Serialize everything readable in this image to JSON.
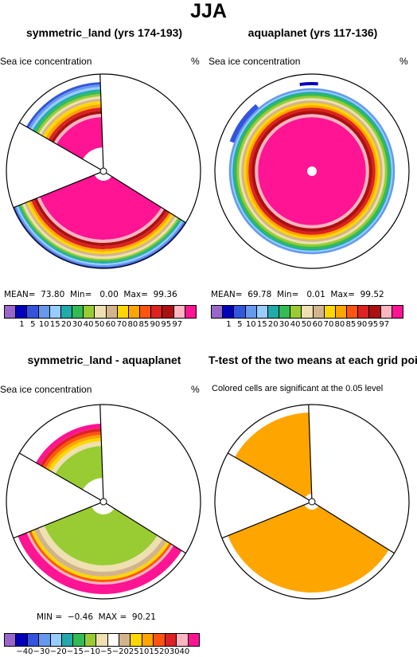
{
  "main_title": "JJA",
  "panels": {
    "p1": {
      "title": "symmetric_land (yrs 174-193)",
      "label": "Sea ice concentration",
      "unit": "%",
      "stats": "MEAN=  73.80  Min=   0.00  Max=  99.36"
    },
    "p2": {
      "title": "aquaplanet (yrs 117-136)",
      "label": "Sea ice concentration",
      "unit": "%",
      "stats": "MEAN=  69.78  Min=   0.01  Max=  99.52"
    },
    "p3": {
      "title": "symmetric_land - aquaplanet",
      "label": "Sea ice concentration",
      "unit": "%",
      "stats": "MIN =  −0.46  MAX =  90.21"
    },
    "p4": {
      "title": "T-test of the two means at each grid point",
      "label": "Colored cells are significant at the 0.05 level"
    }
  },
  "colorbar_top": {
    "colors": [
      "#9966CC",
      "#0000BB",
      "#3355DD",
      "#6699EE",
      "#99CCFF",
      "#22AAAA",
      "#33BB55",
      "#99CC33",
      "#EEE0B0",
      "#D2B48C",
      "#FFD700",
      "#FFA500",
      "#FF5511",
      "#DD2222",
      "#AA1111",
      "#FFB6C1",
      "#FF1493"
    ],
    "ticks": [
      "1",
      "5",
      "10",
      "15",
      "20",
      "30",
      "40",
      "50",
      "60",
      "70",
      "80",
      "85",
      "90",
      "95",
      "97"
    ]
  },
  "colorbar_bottom": {
    "colors": [
      "#9966CC",
      "#0000BB",
      "#3355DD",
      "#6699EE",
      "#99CCFF",
      "#22AAAA",
      "#33BB55",
      "#99CC33",
      "#EEE0B0",
      "#FFFFFF",
      "#D2B48C",
      "#FFD700",
      "#FFA500",
      "#FF5511",
      "#DD2222",
      "#FFB6C1",
      "#FF1493"
    ],
    "ticks": [
      "−40",
      "−30",
      "−20",
      "−15",
      "−10",
      "−5",
      "−2",
      "0",
      "2",
      "5",
      "10",
      "15",
      "20",
      "30",
      "40"
    ]
  },
  "chart_data": [
    {
      "type": "heatmap",
      "title": "symmetric_land (yrs 174-193)",
      "variable": "Sea ice concentration",
      "unit": "%",
      "mean": 73.8,
      "min": 0.0,
      "max": 99.36,
      "levels": [
        1,
        5,
        10,
        15,
        20,
        30,
        40,
        50,
        60,
        70,
        80,
        85,
        90,
        95,
        97
      ]
    },
    {
      "type": "heatmap",
      "title": "aquaplanet (yrs 117-136)",
      "variable": "Sea ice concentration",
      "unit": "%",
      "mean": 69.78,
      "min": 0.01,
      "max": 99.52,
      "levels": [
        1,
        5,
        10,
        15,
        20,
        30,
        40,
        50,
        60,
        70,
        80,
        85,
        90,
        95,
        97
      ]
    },
    {
      "type": "heatmap",
      "title": "symmetric_land - aquaplanet",
      "variable": "Sea ice concentration",
      "unit": "%",
      "min": -0.46,
      "max": 90.21,
      "levels": [
        -40,
        -30,
        -20,
        -15,
        -10,
        -5,
        -2,
        0,
        2,
        5,
        10,
        15,
        20,
        30,
        40
      ]
    },
    {
      "type": "heatmap",
      "title": "T-test of the two means at each grid point",
      "note": "Colored cells are significant at the 0.05 level",
      "significance_level": 0.05,
      "significant_color": "#FFA500"
    }
  ]
}
